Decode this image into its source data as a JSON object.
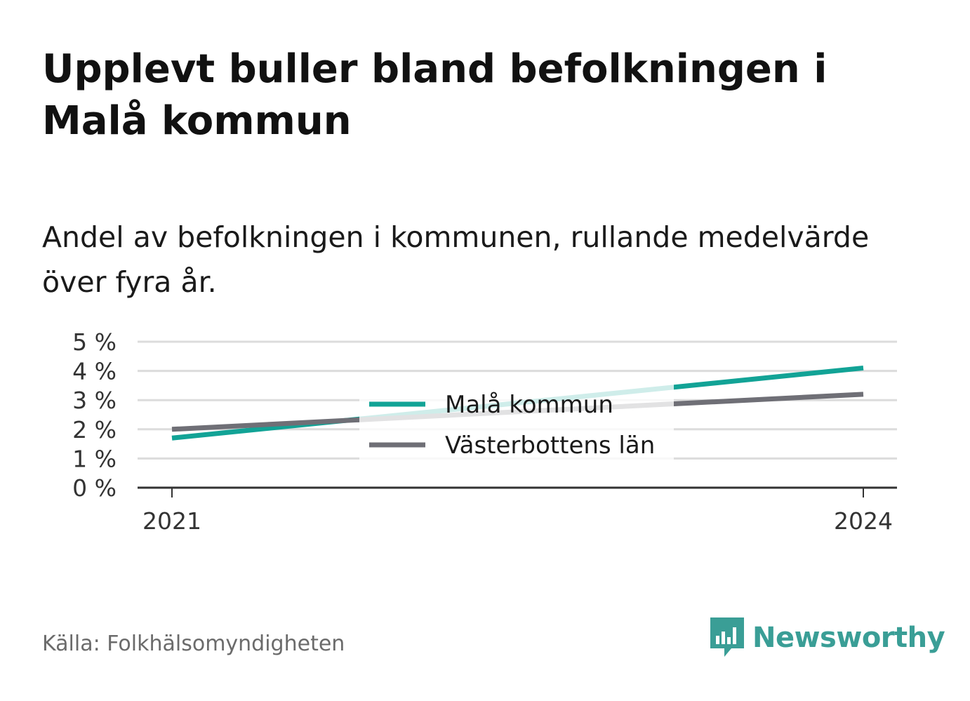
{
  "title": "Upplevt buller bland befolkningen i Malå kommun",
  "subtitle": "Andel av befolkningen i kommunen, rullande medelvärde över fyra år.",
  "source": "Källa: Folkhälsomyndigheten",
  "brand": {
    "name": "Newsworthy",
    "icon": "newsworthy-logo-icon",
    "color": "#3a9e96"
  },
  "chart_data": {
    "type": "line",
    "x": [
      2021,
      2024
    ],
    "x_tick_labels": [
      "2021",
      "2024"
    ],
    "ylim": [
      0,
      5
    ],
    "y_ticks": [
      0,
      1,
      2,
      3,
      4,
      5
    ],
    "y_tick_labels": [
      "0 %",
      "1 %",
      "2 %",
      "3 %",
      "4 %",
      "5 %"
    ],
    "grid": true,
    "legend_position": "center",
    "series": [
      {
        "name": "Malå kommun",
        "values": [
          1.7,
          4.1
        ],
        "color": "#12a396"
      },
      {
        "name": "Västerbottens län",
        "values": [
          2.0,
          3.2
        ],
        "color": "#6f6f76"
      }
    ]
  }
}
